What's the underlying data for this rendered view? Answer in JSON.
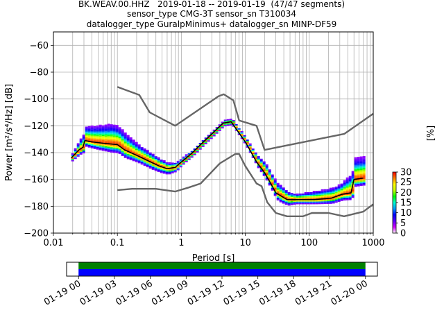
{
  "chart_data": [
    {
      "type": "heatmap",
      "title_lines": [
        "BK.WEAV.00.HHZ   2019-01-18 -- 2019-01-19  (47/47 segments)",
        "sensor_type CMG-3T sensor_sn T310034",
        "datalogger_type GuralpMinimus+ datalogger_sn MINP-DF59"
      ],
      "xlabel": "Period [s]",
      "ylabel": "Power [m²/s⁴/Hz] [dB]",
      "xscale": "log",
      "xlim": [
        0.01,
        1000
      ],
      "ylim": [
        -200,
        -50
      ],
      "x_ticks": [
        0.01,
        0.1,
        1,
        10,
        100,
        1000
      ],
      "x_tick_labels": [
        "0.01",
        "0.1",
        "1",
        "10",
        "100",
        "1000"
      ],
      "y_ticks": [
        -200,
        -180,
        -160,
        -140,
        -120,
        -100,
        -80,
        -60
      ],
      "y_tick_labels": [
        "−200",
        "−180",
        "−160",
        "−140",
        "−120",
        "−100",
        "−80",
        "−60"
      ],
      "grid": true,
      "noise_models": [
        {
          "role": "high",
          "color": "#666666",
          "points": [
            [
              0.1,
              -91
            ],
            [
              0.22,
              -97
            ],
            [
              0.32,
              -110
            ],
            [
              0.8,
              -120
            ],
            [
              3.8,
              -98
            ],
            [
              4.6,
              -96.5
            ],
            [
              6.5,
              -101
            ],
            [
              8,
              -116
            ],
            [
              15,
              -120
            ],
            [
              20,
              -138
            ],
            [
              354,
              -126
            ],
            [
              1000,
              -111
            ]
          ]
        },
        {
          "role": "low",
          "color": "#666666",
          "points": [
            [
              0.1,
              -168
            ],
            [
              0.17,
              -167
            ],
            [
              0.4,
              -167
            ],
            [
              0.8,
              -169
            ],
            [
              1.3,
              -166
            ],
            [
              2,
              -163
            ],
            [
              4,
              -148
            ],
            [
              7,
              -141
            ],
            [
              8,
              -141
            ],
            [
              10,
              -150
            ],
            [
              15,
              -163
            ],
            [
              18,
              -165
            ],
            [
              22,
              -177
            ],
            [
              30,
              -185
            ],
            [
              45,
              -187.5
            ],
            [
              80,
              -187.5
            ],
            [
              110,
              -185
            ],
            [
              200,
              -185
            ],
            [
              350,
              -187.5
            ],
            [
              700,
              -184
            ],
            [
              1000,
              -178.5
            ]
          ]
        }
      ],
      "mode_line": {
        "color": "#000000",
        "points": [
          [
            0.019,
            -144
          ],
          [
            0.025,
            -138
          ],
          [
            0.029,
            -136
          ],
          [
            0.031,
            -131
          ],
          [
            0.04,
            -132
          ],
          [
            0.06,
            -133
          ],
          [
            0.1,
            -134
          ],
          [
            0.13,
            -138
          ],
          [
            0.2,
            -142
          ],
          [
            0.3,
            -146
          ],
          [
            0.45,
            -150
          ],
          [
            0.6,
            -152
          ],
          [
            0.8,
            -151
          ],
          [
            1,
            -147
          ],
          [
            1.5,
            -140
          ],
          [
            2,
            -134
          ],
          [
            3,
            -126
          ],
          [
            4.5,
            -118
          ],
          [
            6,
            -117
          ],
          [
            10,
            -132
          ],
          [
            15,
            -147
          ],
          [
            20,
            -155
          ],
          [
            25,
            -163
          ],
          [
            30,
            -170
          ],
          [
            45,
            -175
          ],
          [
            120,
            -175
          ],
          [
            220,
            -174
          ],
          [
            330,
            -171
          ],
          [
            450,
            -170
          ],
          [
            500,
            -160
          ],
          [
            700,
            -159
          ]
        ]
      },
      "spread": [
        [
          0.019,
          3,
          2
        ],
        [
          0.03,
          10,
          4
        ],
        [
          0.05,
          12,
          5
        ],
        [
          0.08,
          14,
          6
        ],
        [
          0.12,
          12,
          6
        ],
        [
          0.2,
          8,
          5
        ],
        [
          0.35,
          6,
          5
        ],
        [
          0.6,
          4,
          4
        ],
        [
          1,
          3,
          2
        ],
        [
          3,
          2,
          2
        ],
        [
          6,
          2,
          2
        ],
        [
          12,
          3,
          3
        ],
        [
          20,
          7,
          4
        ],
        [
          35,
          7,
          5
        ],
        [
          60,
          4,
          3
        ],
        [
          120,
          6,
          3
        ],
        [
          300,
          8,
          4
        ],
        [
          500,
          15,
          5
        ],
        [
          700,
          15,
          5
        ]
      ],
      "colorbar": {
        "label": "[%]",
        "ticks": [
          0,
          5,
          10,
          15,
          20,
          25,
          30
        ],
        "tick_labels": [
          "0",
          "5",
          "10",
          "15",
          "20",
          "25",
          "30"
        ],
        "range": [
          0,
          30
        ],
        "colors": [
          "#ffffff",
          "#d000ff",
          "#5a00ff",
          "#0000ff",
          "#00a0ff",
          "#00ffd0",
          "#00ff00",
          "#c8ff00",
          "#ffff00",
          "#ff8000",
          "#ff0000"
        ]
      }
    },
    {
      "type": "timeline",
      "x_tick_labels": [
        "01-19 00",
        "01-19 03",
        "01-19 06",
        "01-19 09",
        "01-19 12",
        "01-19 15",
        "01-19 18",
        "01-19 21",
        "01-20 00"
      ],
      "xlim_hours": [
        -1,
        25
      ],
      "coverage_hours": [
        0,
        24
      ],
      "bar_colors": [
        "#008000",
        "#0000ff"
      ]
    }
  ]
}
